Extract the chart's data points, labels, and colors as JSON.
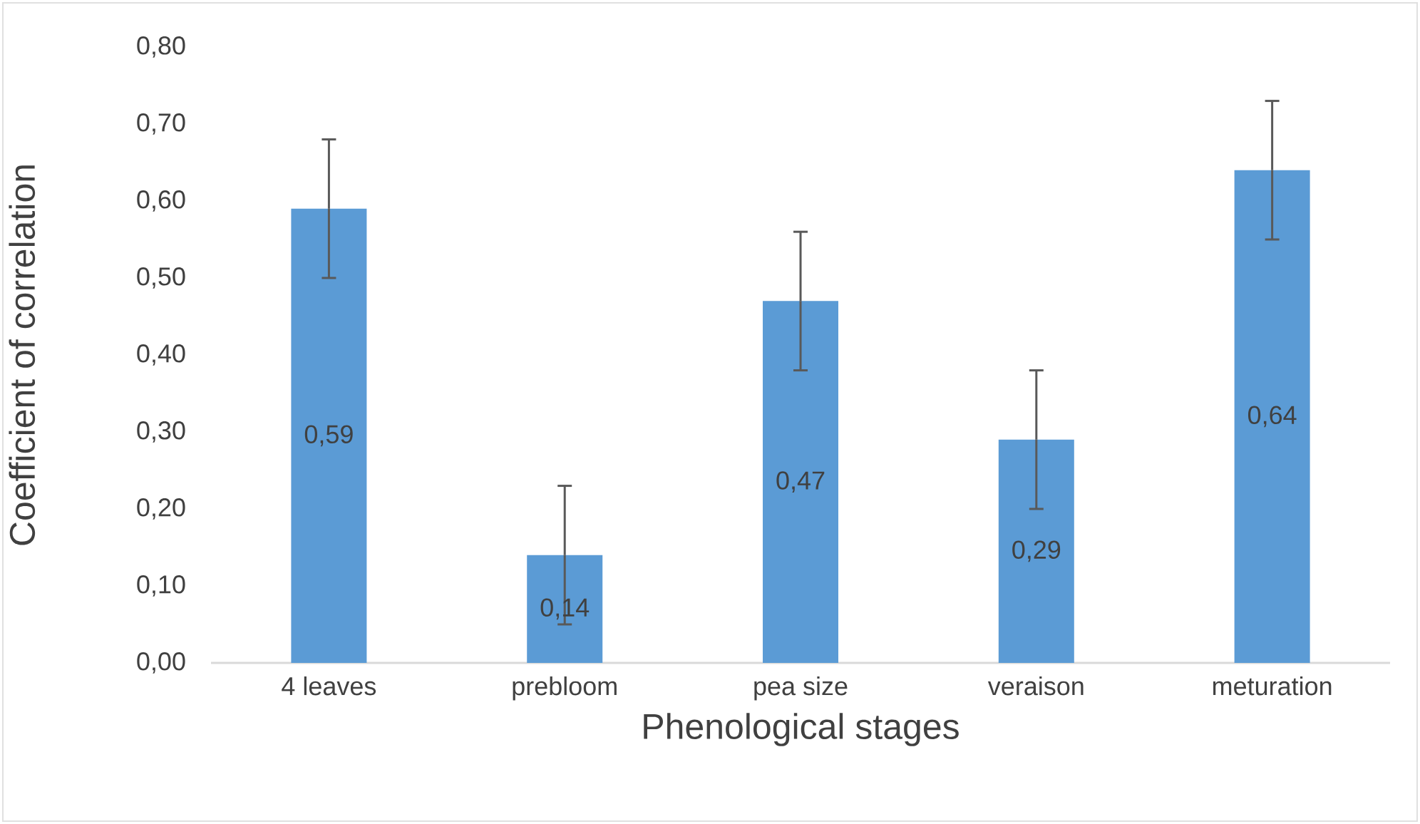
{
  "chart_data": {
    "type": "bar",
    "xlabel": "Phenological stages",
    "ylabel": "Coefficient of correlation",
    "categories": [
      "4 leaves",
      "prebloom",
      "pea size",
      "veraison",
      "meturation"
    ],
    "values": [
      0.59,
      0.14,
      0.47,
      0.29,
      0.64
    ],
    "errors": [
      0.09,
      0.09,
      0.09,
      0.09,
      0.09
    ],
    "value_labels": [
      "0,59",
      "0,14",
      "0,47",
      "0,29",
      "0,64"
    ],
    "color": "#5b9bd5",
    "ylim": [
      0,
      0.8
    ],
    "yticks": [
      {
        "value": 0,
        "label": "0,00"
      },
      {
        "value": 0.1,
        "label": "0,10"
      },
      {
        "value": 0.2,
        "label": "0,20"
      },
      {
        "value": 0.3,
        "label": "0,30"
      },
      {
        "value": 0.4,
        "label": "0,40"
      },
      {
        "value": 0.5,
        "label": "0,50"
      },
      {
        "value": 0.6,
        "label": "0,60"
      },
      {
        "value": 0.7,
        "label": "0,70"
      },
      {
        "value": 0.8,
        "label": "0,80"
      }
    ],
    "line_style": "solid"
  }
}
